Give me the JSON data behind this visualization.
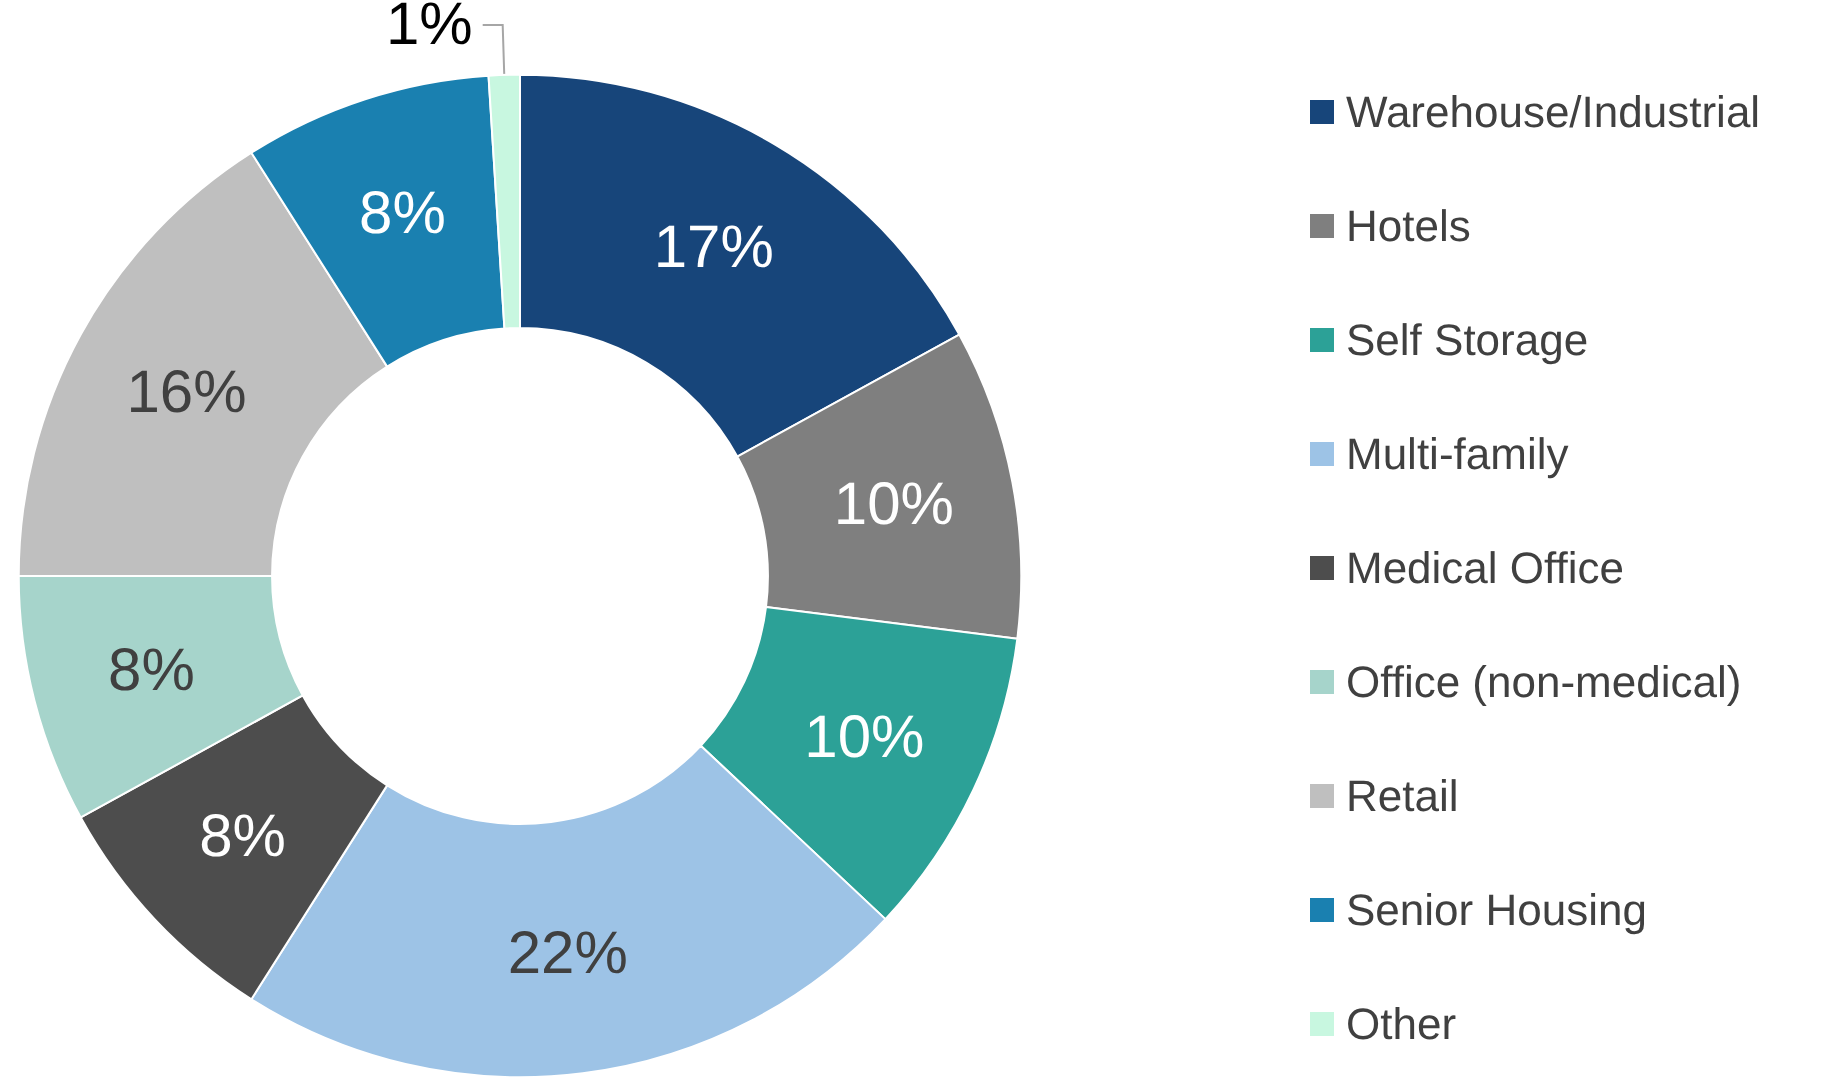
{
  "chart_data": {
    "type": "donut",
    "categories": [
      "Warehouse/Industrial",
      "Hotels",
      "Self Storage",
      "Multi-family",
      "Medical Office",
      "Office (non-medical)",
      "Retail",
      "Senior Housing",
      "Other"
    ],
    "values": [
      17,
      10,
      10,
      22,
      8,
      8,
      16,
      8,
      1
    ],
    "colors": [
      "#17457a",
      "#7f7f7f",
      "#2ca197",
      "#9dc3e6",
      "#4d4d4d",
      "#a6d4cb",
      "#bfbfbf",
      "#1a80b0",
      "#c8f7e0"
    ],
    "value_labels": [
      "17%",
      "10%",
      "10%",
      "22%",
      "8%",
      "8%",
      "16%",
      "8%",
      "1%"
    ],
    "legend": "right"
  }
}
